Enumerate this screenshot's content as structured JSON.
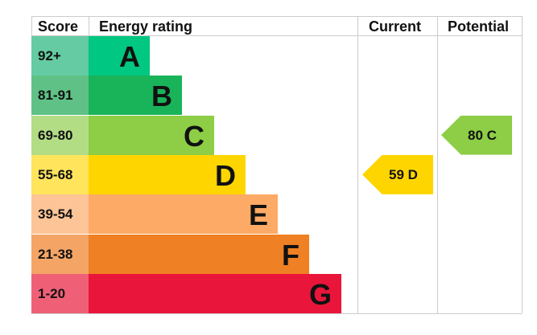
{
  "chart_data": {
    "type": "table",
    "headers": {
      "score": "Score",
      "rating": "Energy rating",
      "current": "Current",
      "potential": "Potential"
    },
    "bands": [
      {
        "letter": "A",
        "range": "92+",
        "color": "#00c781",
        "light": "#64cba3"
      },
      {
        "letter": "B",
        "range": "81-91",
        "color": "#19b459",
        "light": "#5fc185"
      },
      {
        "letter": "C",
        "range": "69-80",
        "color": "#8dce46",
        "light": "#b3dd85"
      },
      {
        "letter": "D",
        "range": "55-68",
        "color": "#ffd500",
        "light": "#ffe45c"
      },
      {
        "letter": "E",
        "range": "39-54",
        "color": "#fcaa65",
        "light": "#fdc597"
      },
      {
        "letter": "F",
        "range": "21-38",
        "color": "#ef8023",
        "light": "#f4a566"
      },
      {
        "letter": "G",
        "range": "1-20",
        "color": "#e9153b",
        "light": "#ef6077"
      }
    ],
    "current": {
      "value": 59,
      "band": "D",
      "label": "59  D",
      "color": "#ffd500"
    },
    "potential": {
      "value": 80,
      "band": "C",
      "label": "80  C",
      "color": "#8dce46"
    }
  }
}
